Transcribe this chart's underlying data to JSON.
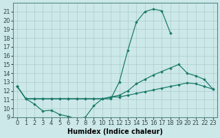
{
  "xlabel": "Humidex (Indice chaleur)",
  "xlim": [
    -0.5,
    23.5
  ],
  "ylim": [
    9,
    22
  ],
  "yticks": [
    9,
    10,
    11,
    12,
    13,
    14,
    15,
    16,
    17,
    18,
    19,
    20,
    21
  ],
  "xticks": [
    0,
    1,
    2,
    3,
    4,
    5,
    6,
    7,
    8,
    9,
    10,
    11,
    12,
    13,
    14,
    15,
    16,
    17,
    18,
    19,
    20,
    21,
    22,
    23
  ],
  "bg_color": "#cce8e8",
  "line_color": "#1a7a6a",
  "grid_color": "#aacccc",
  "line1_x": [
    0,
    1,
    2,
    3,
    4,
    5,
    6,
    7,
    8,
    9,
    10,
    11,
    12,
    13,
    14,
    15,
    16,
    17,
    18
  ],
  "line1_y": [
    12.5,
    11.1,
    11.1,
    11.1,
    11.1,
    11.1,
    11.1,
    11.1,
    11.1,
    11.1,
    11.1,
    11.1,
    13.0,
    16.6,
    19.8,
    21.0,
    21.3,
    21.1,
    18.6
  ],
  "line2_x": [
    0,
    1,
    2,
    3,
    4,
    5,
    6,
    7,
    8,
    9,
    10,
    11,
    12,
    13,
    14,
    15,
    16,
    17,
    18,
    19,
    20,
    21,
    22,
    23
  ],
  "line2_y": [
    12.5,
    11.1,
    11.1,
    11.1,
    11.1,
    11.1,
    11.1,
    11.1,
    11.1,
    11.1,
    11.1,
    11.3,
    11.5,
    12.0,
    12.8,
    13.3,
    13.8,
    14.2,
    14.6,
    15.0,
    14.0,
    13.7,
    13.3,
    12.2
  ],
  "line3_x": [
    0,
    1,
    2,
    3,
    4,
    5,
    6,
    7,
    8,
    9,
    10,
    11,
    12,
    13,
    14,
    15,
    16,
    17,
    18,
    19,
    20,
    21,
    22,
    23
  ],
  "line3_y": [
    12.5,
    11.1,
    10.5,
    9.7,
    9.8,
    9.3,
    9.1,
    8.8,
    9.0,
    10.3,
    11.1,
    11.3,
    11.3,
    11.5,
    11.7,
    11.9,
    12.1,
    12.3,
    12.5,
    12.7,
    12.9,
    12.8,
    12.5,
    12.2
  ],
  "tick_fontsize": 6,
  "xlabel_fontsize": 7
}
